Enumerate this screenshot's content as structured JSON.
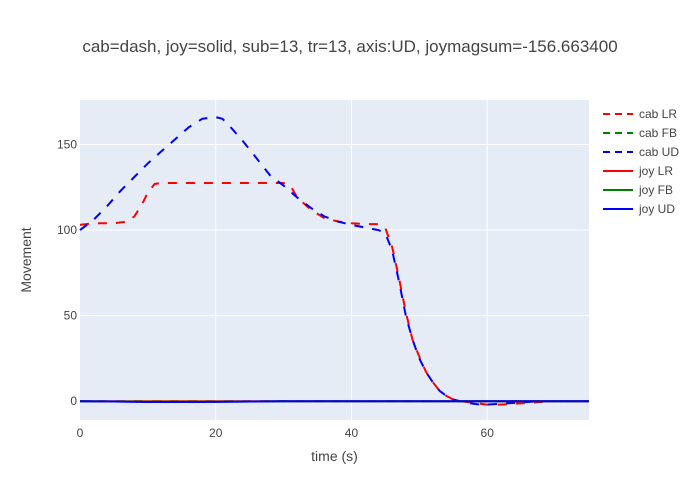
{
  "chart_data": {
    "type": "line",
    "title": "cab=dash, joy=solid, sub=13, tr=13, axis:UD, joymagsum=-156.663400",
    "xlabel": "time (s)",
    "ylabel": "Movement",
    "xlim": [
      0,
      75
    ],
    "ylim": [
      -11,
      176
    ],
    "x_ticks": [
      0,
      20,
      40,
      60
    ],
    "y_ticks": [
      0,
      50,
      100,
      150
    ],
    "grid": true,
    "legend_position": "right",
    "plot_background": "#e5ecf6",
    "series": [
      {
        "name": "cab LR",
        "color": "#ff0000",
        "dash": "dash",
        "x": [
          0,
          2,
          5,
          7,
          8,
          9,
          10,
          11,
          12,
          15,
          20,
          25,
          30,
          31,
          32,
          34,
          36,
          38,
          40,
          42,
          44,
          45,
          46,
          47,
          48,
          49,
          50,
          51,
          52,
          53,
          54,
          55,
          56,
          57,
          58,
          59,
          60,
          62,
          64,
          66,
          68,
          70,
          75
        ],
        "y": [
          103,
          104,
          104,
          105,
          108,
          114,
          122,
          127,
          127.5,
          127.5,
          127.5,
          127.5,
          127.5,
          126,
          119,
          112,
          107,
          105,
          104,
          103.5,
          103.5,
          101,
          90,
          72,
          52,
          36,
          26,
          17,
          11,
          6,
          3,
          1,
          0,
          -0.5,
          -1,
          -1.5,
          -2,
          -2,
          -1.5,
          -1,
          -0.5,
          0,
          0
        ]
      },
      {
        "name": "cab FB",
        "color": "#008000",
        "dash": "dash",
        "x": [
          0,
          75
        ],
        "y": [
          0,
          0
        ]
      },
      {
        "name": "cab UD",
        "color": "#0000ff",
        "dash": "dash",
        "x": [
          0,
          2,
          4,
          6,
          8,
          10,
          12,
          14,
          16,
          18,
          20,
          21,
          22,
          24,
          26,
          28,
          30,
          32,
          34,
          36,
          38,
          40,
          42,
          44,
          45,
          46,
          47,
          48,
          49,
          50,
          51,
          52,
          53,
          54,
          55,
          56,
          57,
          58,
          59,
          60,
          62,
          64,
          66,
          68,
          70,
          75
        ],
        "y": [
          100,
          106,
          114,
          123,
          131,
          139,
          146,
          153,
          160,
          165,
          166,
          165,
          161,
          152,
          142,
          132,
          126,
          119,
          113,
          108,
          105,
          103,
          101.5,
          100,
          98,
          88,
          70,
          50,
          36,
          25,
          17,
          11,
          6,
          3,
          1,
          0,
          -1,
          -1.5,
          -2,
          -2,
          -1.5,
          -1,
          -0.5,
          0,
          0,
          0
        ]
      },
      {
        "name": "joy LR",
        "color": "#ff0000",
        "dash": "solid",
        "x": [
          0,
          75
        ],
        "y": [
          0,
          0
        ]
      },
      {
        "name": "joy FB",
        "color": "#008000",
        "dash": "solid",
        "x": [
          0,
          10,
          20,
          30,
          40,
          50,
          60,
          75
        ],
        "y": [
          0,
          -0.3,
          -0.3,
          -0.1,
          0,
          0,
          0,
          0
        ]
      },
      {
        "name": "joy UD",
        "color": "#0000ff",
        "dash": "solid",
        "x": [
          0,
          5,
          10,
          15,
          20,
          25,
          30,
          40,
          50,
          60,
          75
        ],
        "y": [
          0,
          -0.2,
          -0.5,
          -0.5,
          -0.4,
          -0.2,
          0,
          0,
          0,
          0,
          0
        ]
      }
    ]
  }
}
